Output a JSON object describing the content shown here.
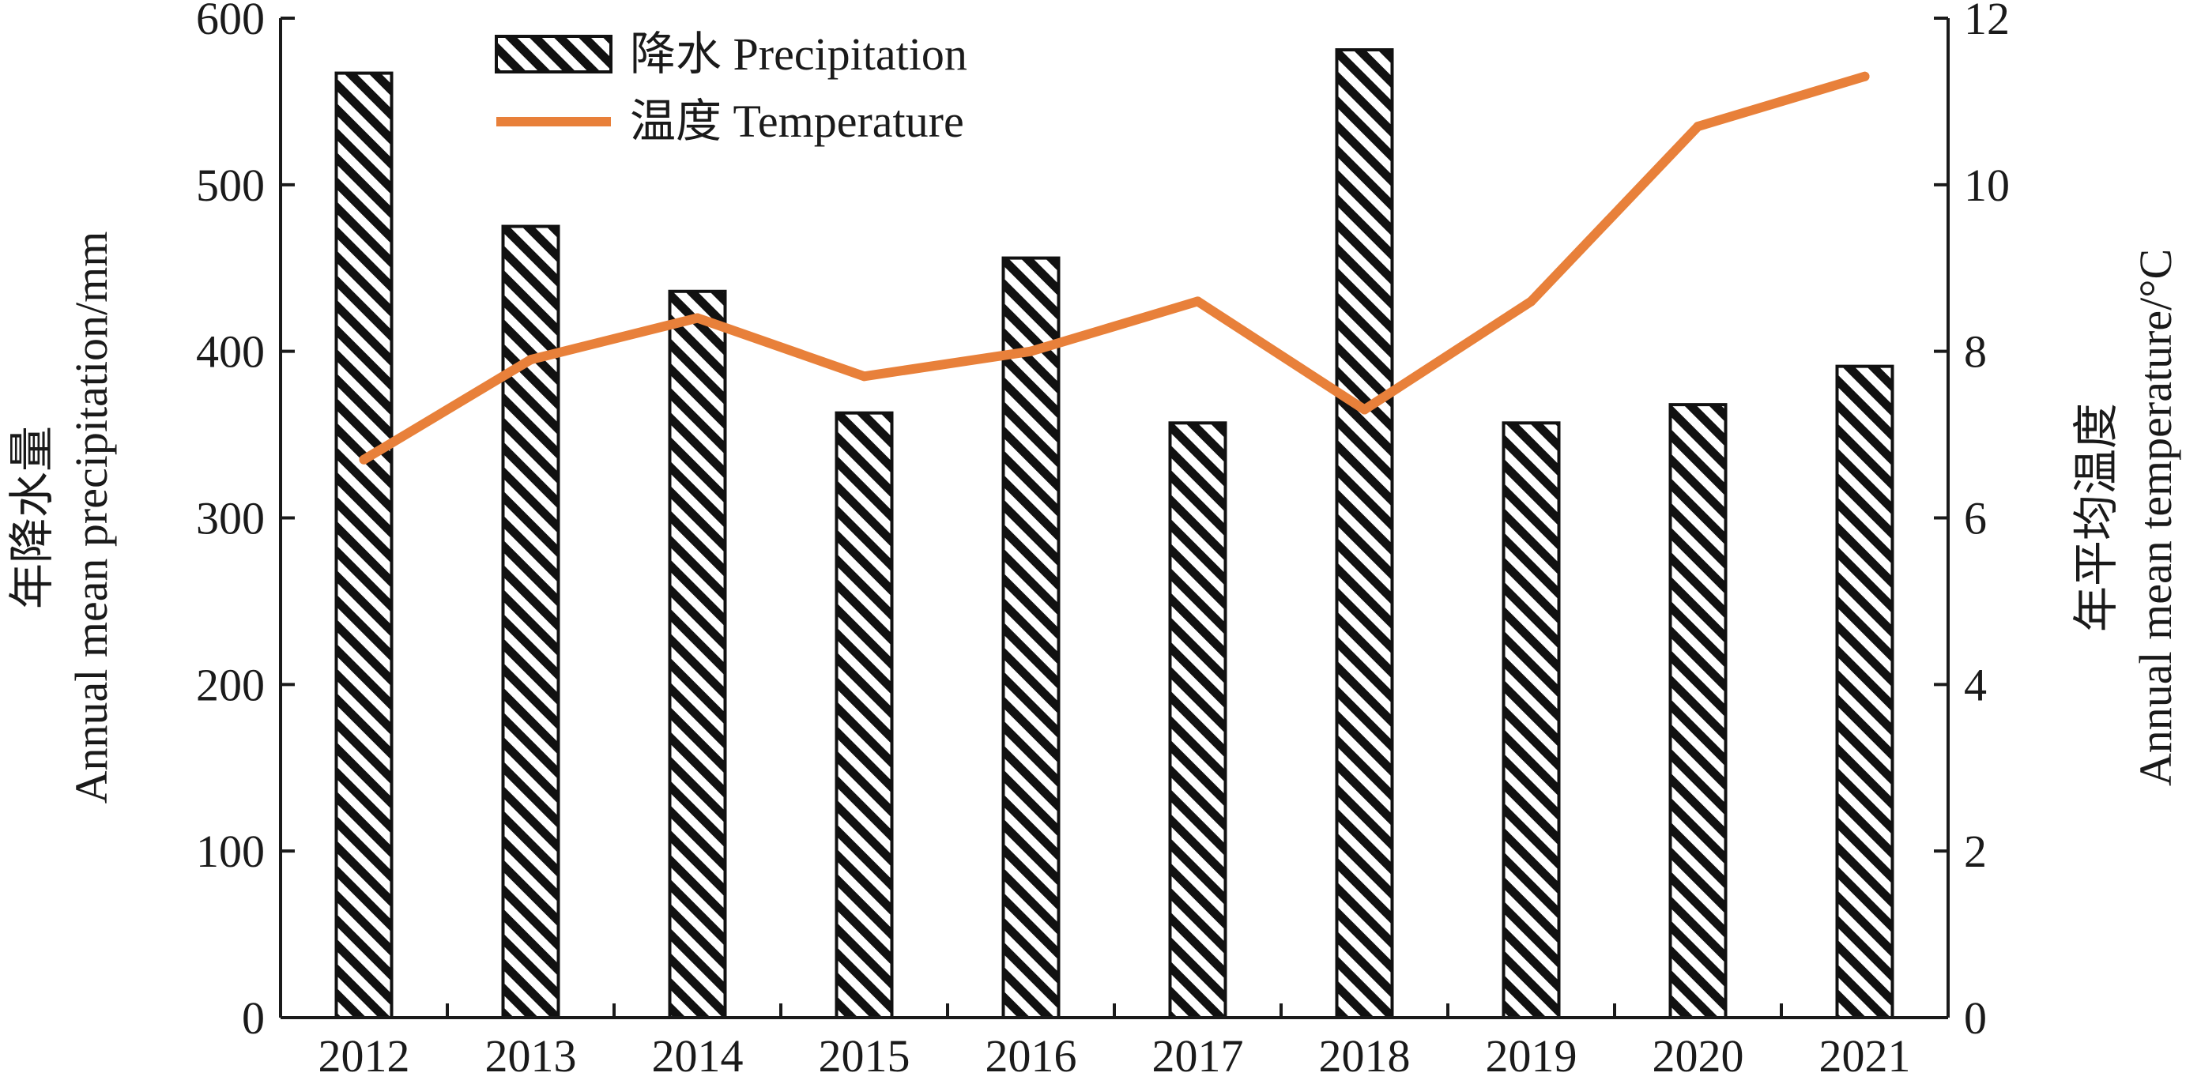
{
  "chart_data": {
    "type": "bar",
    "categories": [
      "2012",
      "2013",
      "2014",
      "2015",
      "2016",
      "2017",
      "2018",
      "2019",
      "2020",
      "2021"
    ],
    "series": [
      {
        "name": "降水 Precipitation",
        "chart_type": "bar",
        "axis": "left",
        "pattern": "diagonal-hatch",
        "values": [
          567,
          475,
          436,
          363,
          456,
          357,
          581,
          357,
          368,
          391
        ]
      },
      {
        "name": "温度 Temperature",
        "chart_type": "line",
        "axis": "right",
        "values": [
          6.7,
          7.9,
          8.4,
          7.7,
          8.0,
          8.6,
          7.3,
          8.6,
          10.7,
          11.3
        ]
      }
    ],
    "ylabel_left": [
      "年降水量",
      "Annual mean precipitation/mm"
    ],
    "ylabel_right": [
      "年平均温度",
      "Annual mean temperature/°C"
    ],
    "ylim_left": [
      0,
      600
    ],
    "ylim_right": [
      0,
      12
    ],
    "yticks_left": [
      "0",
      "100",
      "200",
      "300",
      "400",
      "500",
      "600"
    ],
    "yticks_right": [
      "0",
      "2",
      "4",
      "6",
      "8",
      "10",
      "12"
    ],
    "legend_position": "top-left",
    "grid": false,
    "colors": {
      "line": "#e8803a",
      "bar_fill": "#ffffff",
      "bar_hatch": "#111111",
      "axis": "#1a1a1a"
    }
  }
}
